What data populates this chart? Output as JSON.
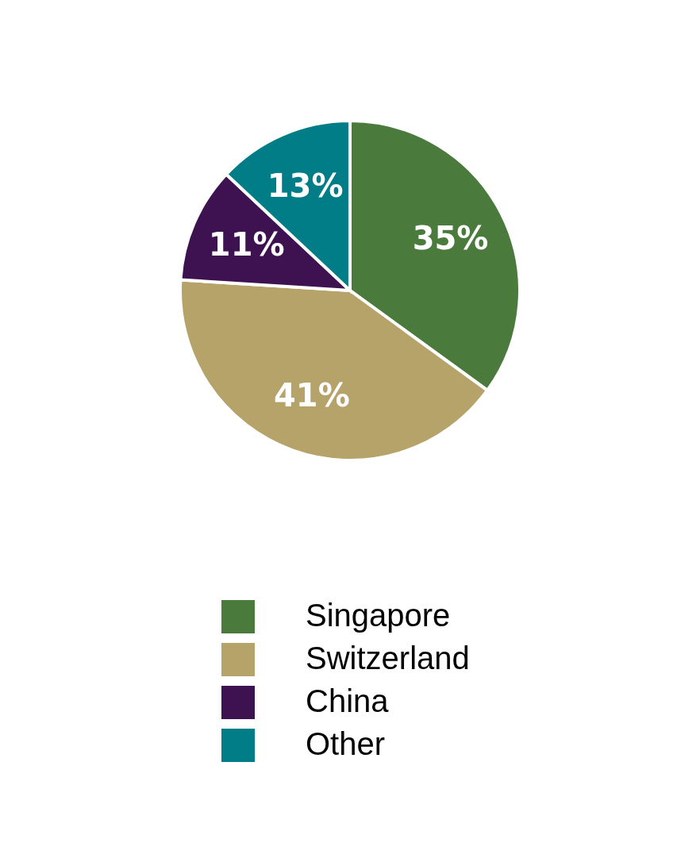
{
  "chart_data": {
    "type": "pie",
    "categories": [
      "Singapore",
      "Switzerland",
      "China",
      "Other"
    ],
    "values": [
      35,
      41,
      11,
      13
    ],
    "value_labels": [
      "35%",
      "41%",
      "11%",
      "13%"
    ],
    "colors": [
      "#4a7a3c",
      "#b5a36a",
      "#3e1250",
      "#007d87"
    ],
    "legend": "bottom"
  }
}
